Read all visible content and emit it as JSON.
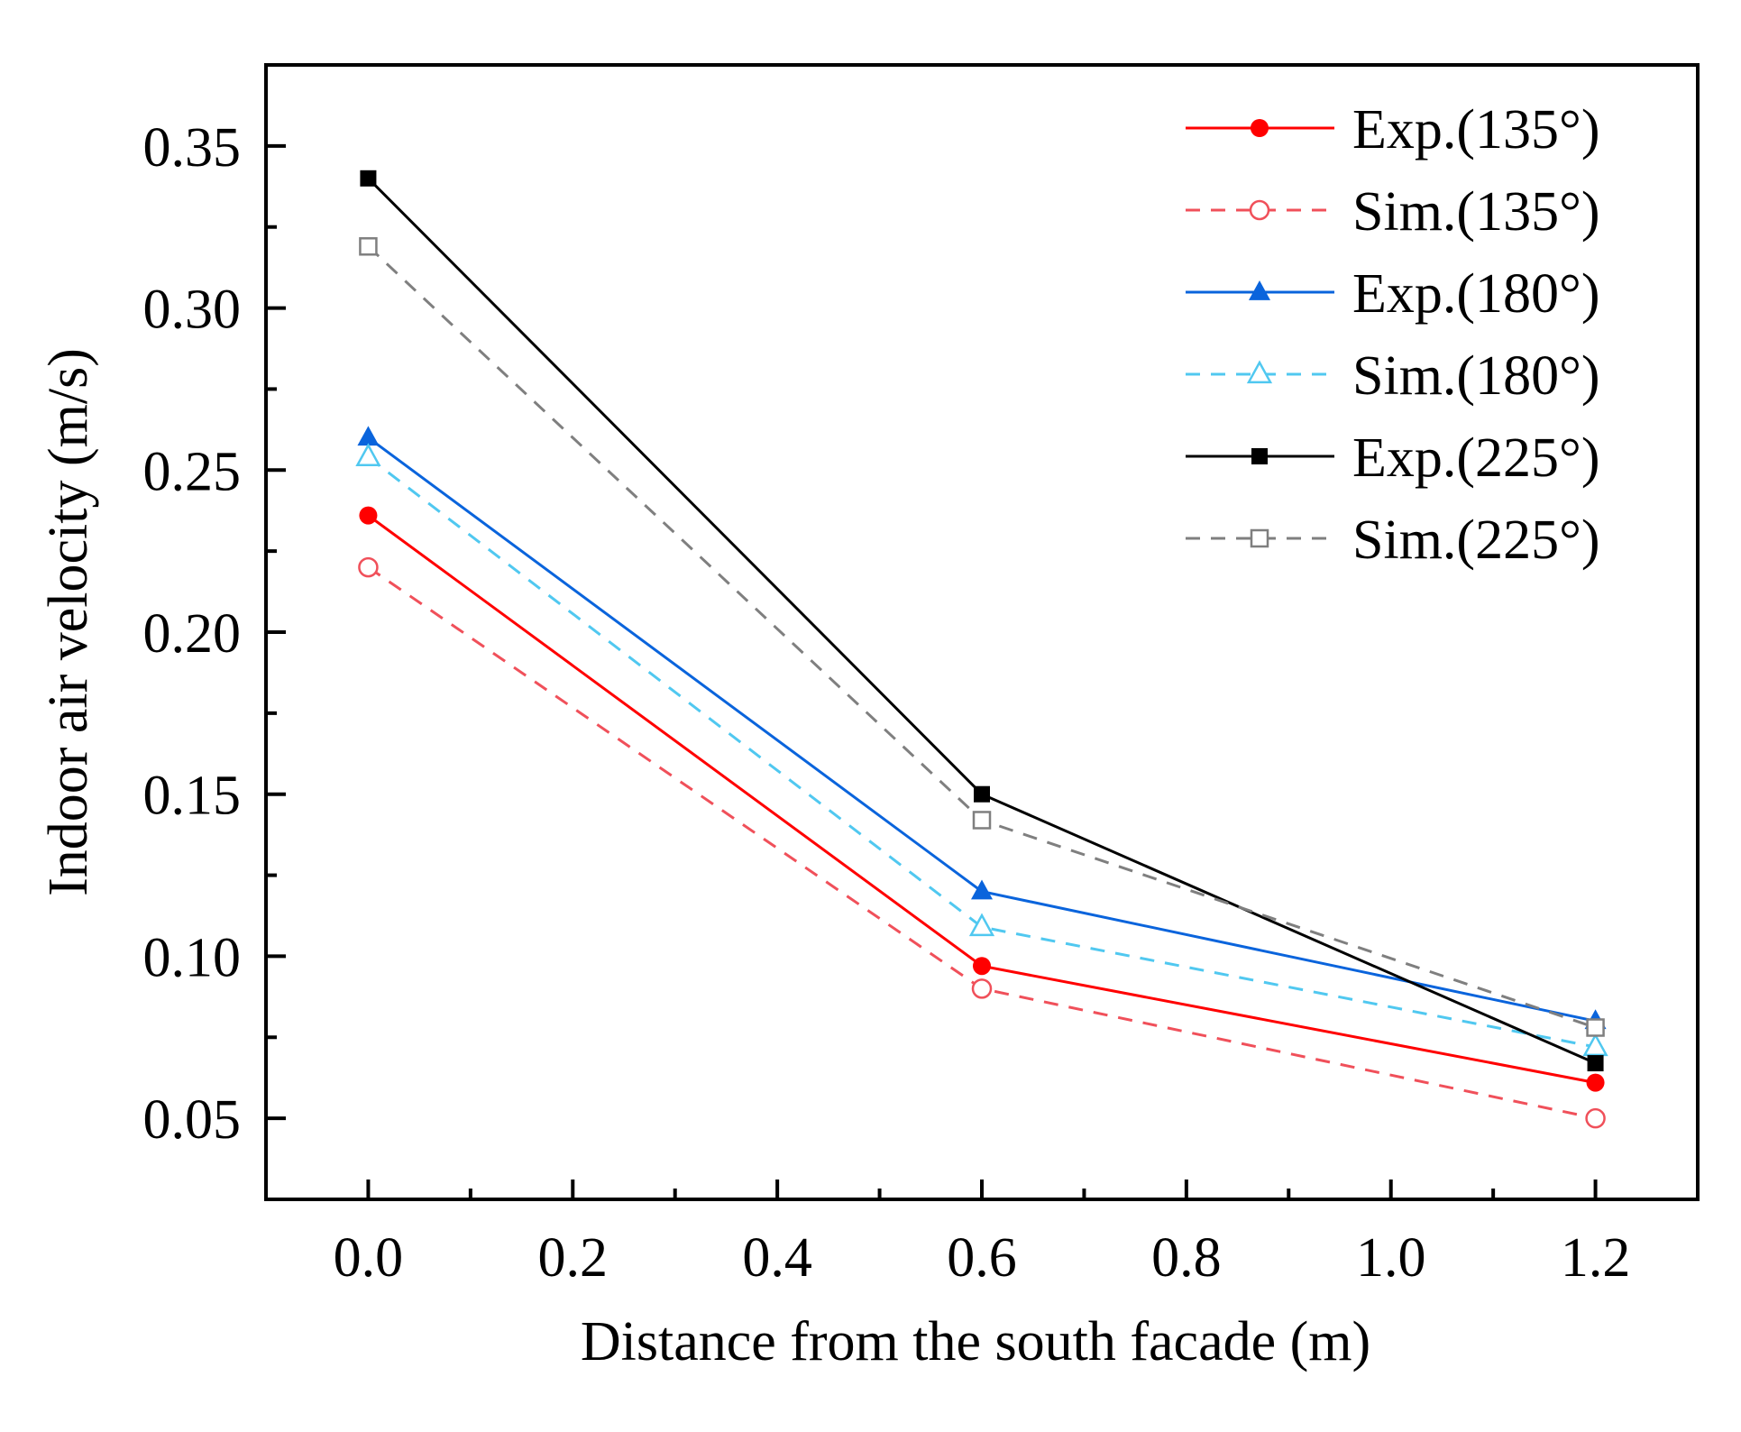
{
  "chart_data": {
    "type": "line",
    "title": "",
    "xlabel": "Distance from the south facade (m)",
    "ylabel": "Indoor air velocity (m/s)",
    "xlim": [
      -0.1,
      1.3
    ],
    "ylim": [
      0.025,
      0.375
    ],
    "x_ticks": [
      0.0,
      0.2,
      0.4,
      0.6,
      0.8,
      1.0,
      1.2
    ],
    "x_tick_labels": [
      "0.0",
      "0.2",
      "0.4",
      "0.6",
      "0.8",
      "1.0",
      "1.2"
    ],
    "y_ticks": [
      0.05,
      0.1,
      0.15,
      0.2,
      0.25,
      0.3,
      0.35
    ],
    "y_tick_labels": [
      "0.05",
      "0.10",
      "0.15",
      "0.20",
      "0.25",
      "0.30",
      "0.35"
    ],
    "grid": false,
    "legend_position": "top-right",
    "x": [
      0.0,
      0.6,
      1.2
    ],
    "series": [
      {
        "name": "Exp.(135°)",
        "values": [
          0.236,
          0.097,
          0.061
        ],
        "color": "#ff0000",
        "dashed": false,
        "marker": "circle",
        "filled": true
      },
      {
        "name": "Sim.(135°)",
        "values": [
          0.22,
          0.09,
          0.05
        ],
        "color": "#f0505a",
        "dashed": true,
        "marker": "circle",
        "filled": false
      },
      {
        "name": "Exp.(180°)",
        "values": [
          0.26,
          0.12,
          0.08
        ],
        "color": "#0a64dc",
        "dashed": false,
        "marker": "triangle",
        "filled": true
      },
      {
        "name": "Sim.(180°)",
        "values": [
          0.254,
          0.109,
          0.072
        ],
        "color": "#50c8f0",
        "dashed": true,
        "marker": "triangle",
        "filled": false
      },
      {
        "name": "Exp.(225°)",
        "values": [
          0.34,
          0.15,
          0.067
        ],
        "color": "#000000",
        "dashed": false,
        "marker": "square",
        "filled": true
      },
      {
        "name": "Sim.(225°)",
        "values": [
          0.319,
          0.142,
          0.078
        ],
        "color": "#7f7f7f",
        "dashed": true,
        "marker": "square",
        "filled": false
      }
    ]
  }
}
